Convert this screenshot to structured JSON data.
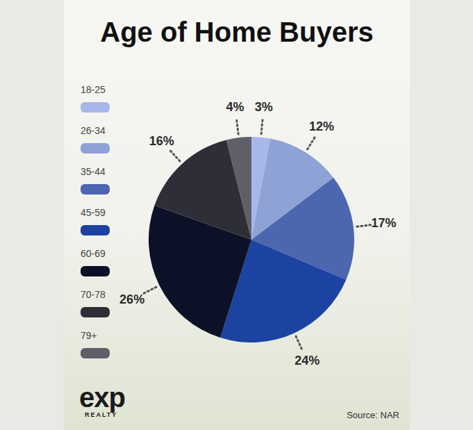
{
  "chart_data": {
    "type": "pie",
    "title": "Age of Home Buyers",
    "categories": [
      "18-25",
      "26-34",
      "35-44",
      "45-59",
      "60-69",
      "70-78",
      "79+"
    ],
    "values": [
      3,
      12,
      17,
      24,
      26,
      16,
      4
    ],
    "value_labels": [
      "3%",
      "12%",
      "17%",
      "24%",
      "26%",
      "16%",
      "4%"
    ],
    "colors": [
      "#a8b7ea",
      "#8ea2d5",
      "#4c66b0",
      "#1c43a1",
      "#0d1127",
      "#2d2e37",
      "#5f5f69"
    ],
    "legend": "left",
    "data_labels": true,
    "logo": "exp",
    "logo_subtitle": "REALTY",
    "source": "Source: NAR"
  }
}
